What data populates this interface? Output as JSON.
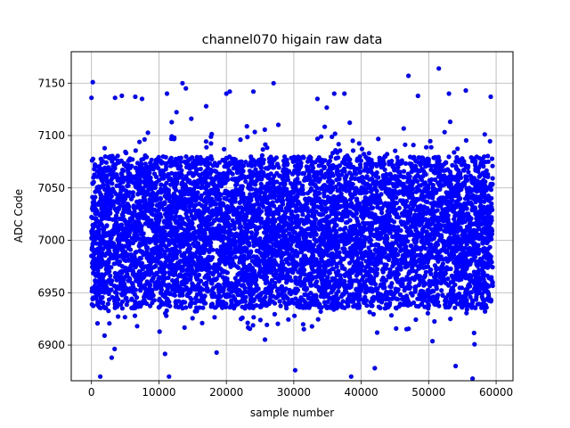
{
  "chart_data": {
    "type": "scatter",
    "title": "channel070 higain raw data",
    "xlabel": "sample number",
    "ylabel": "ADC Code",
    "xlim": [
      -3000,
      62500
    ],
    "ylim": [
      6866,
      7180
    ],
    "xticks": [
      0,
      10000,
      20000,
      30000,
      40000,
      50000,
      60000
    ],
    "xtick_labels": [
      "0",
      "10000",
      "20000",
      "30000",
      "40000",
      "50000",
      "60000"
    ],
    "yticks": [
      6900,
      6950,
      7000,
      7050,
      7100,
      7150
    ],
    "ytick_labels": [
      "6900",
      "6950",
      "7000",
      "7050",
      "7100",
      "7150"
    ],
    "grid": true,
    "marker_color": "#0000ff",
    "x_range": [
      0,
      59500
    ],
    "dense_band": [
      6935,
      7080
    ],
    "outliers": [
      {
        "x": 200,
        "y": 7151
      },
      {
        "x": 0,
        "y": 7136
      },
      {
        "x": 1300,
        "y": 6870
      },
      {
        "x": 3500,
        "y": 7136
      },
      {
        "x": 4500,
        "y": 7138
      },
      {
        "x": 6500,
        "y": 7137
      },
      {
        "x": 7500,
        "y": 7135
      },
      {
        "x": 11200,
        "y": 7140
      },
      {
        "x": 11500,
        "y": 6870
      },
      {
        "x": 13500,
        "y": 7150
      },
      {
        "x": 14000,
        "y": 7145
      },
      {
        "x": 17000,
        "y": 7128
      },
      {
        "x": 20000,
        "y": 7140
      },
      {
        "x": 20500,
        "y": 7142
      },
      {
        "x": 24000,
        "y": 7142
      },
      {
        "x": 27000,
        "y": 7150
      },
      {
        "x": 30200,
        "y": 6876
      },
      {
        "x": 33500,
        "y": 7135
      },
      {
        "x": 36000,
        "y": 7140
      },
      {
        "x": 37500,
        "y": 7140
      },
      {
        "x": 38500,
        "y": 6870
      },
      {
        "x": 47000,
        "y": 7157
      },
      {
        "x": 51500,
        "y": 7164
      },
      {
        "x": 53000,
        "y": 7140
      },
      {
        "x": 55500,
        "y": 7143
      },
      {
        "x": 56500,
        "y": 6868
      },
      {
        "x": 59200,
        "y": 7137
      },
      {
        "x": 42000,
        "y": 6878
      },
      {
        "x": 54000,
        "y": 6880
      },
      {
        "x": 3000,
        "y": 6888
      }
    ]
  }
}
